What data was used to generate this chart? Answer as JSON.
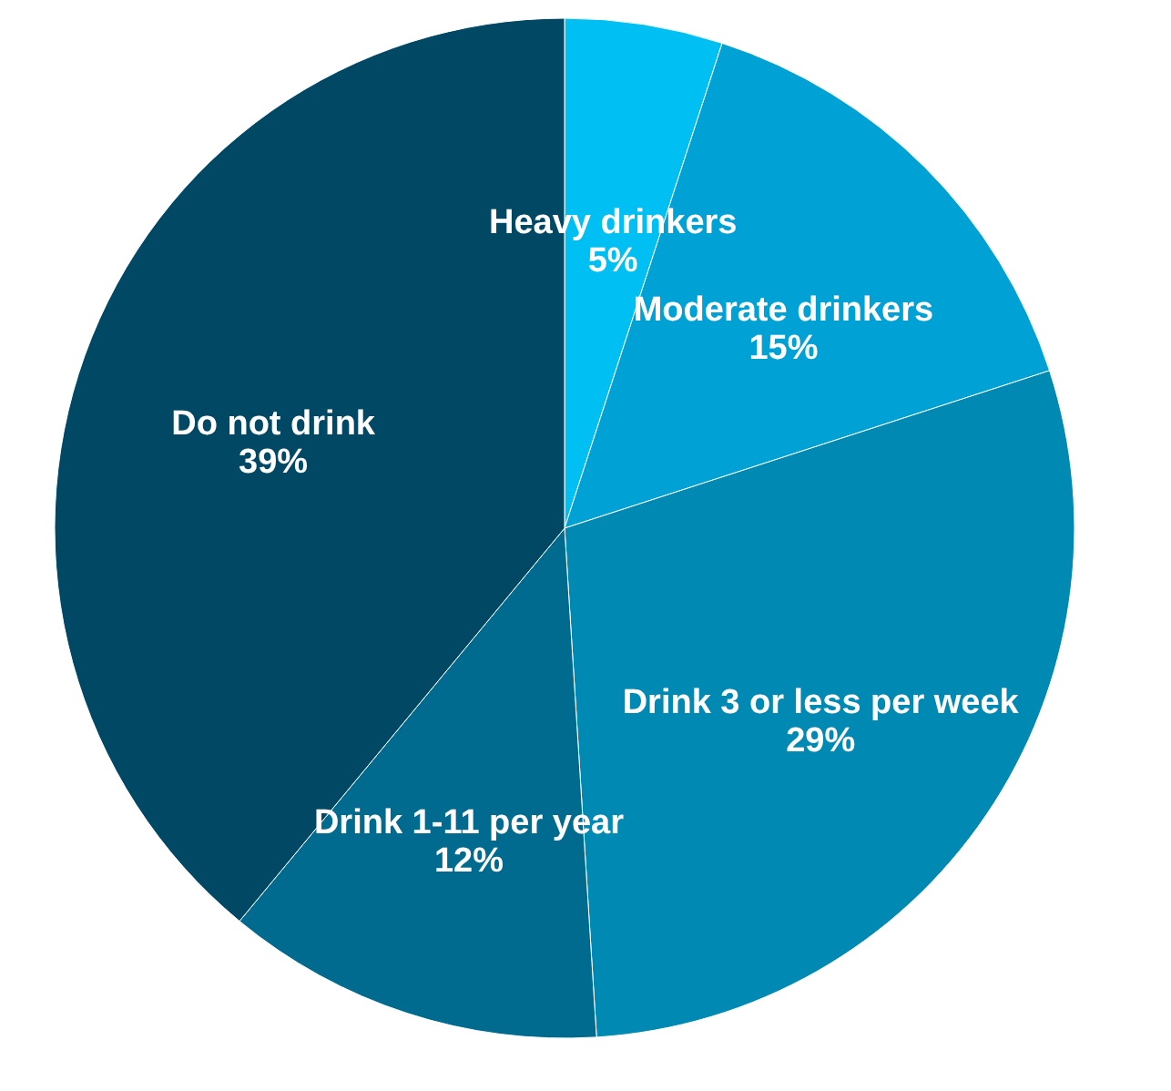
{
  "chart_data": {
    "type": "pie",
    "categories": [
      "Heavy drinkers",
      "Moderate drinkers",
      "Drink 3 or less per week",
      "Drink 1-11 per year",
      "Do not drink"
    ],
    "values": [
      5,
      15,
      29,
      12,
      39
    ],
    "value_labels": [
      "5%",
      "15%",
      "29%",
      "12%",
      "39%"
    ],
    "colors": [
      "#00bff2",
      "#00a2d6",
      "#0089b2",
      "#006b8f",
      "#004864"
    ],
    "legend": false
  }
}
